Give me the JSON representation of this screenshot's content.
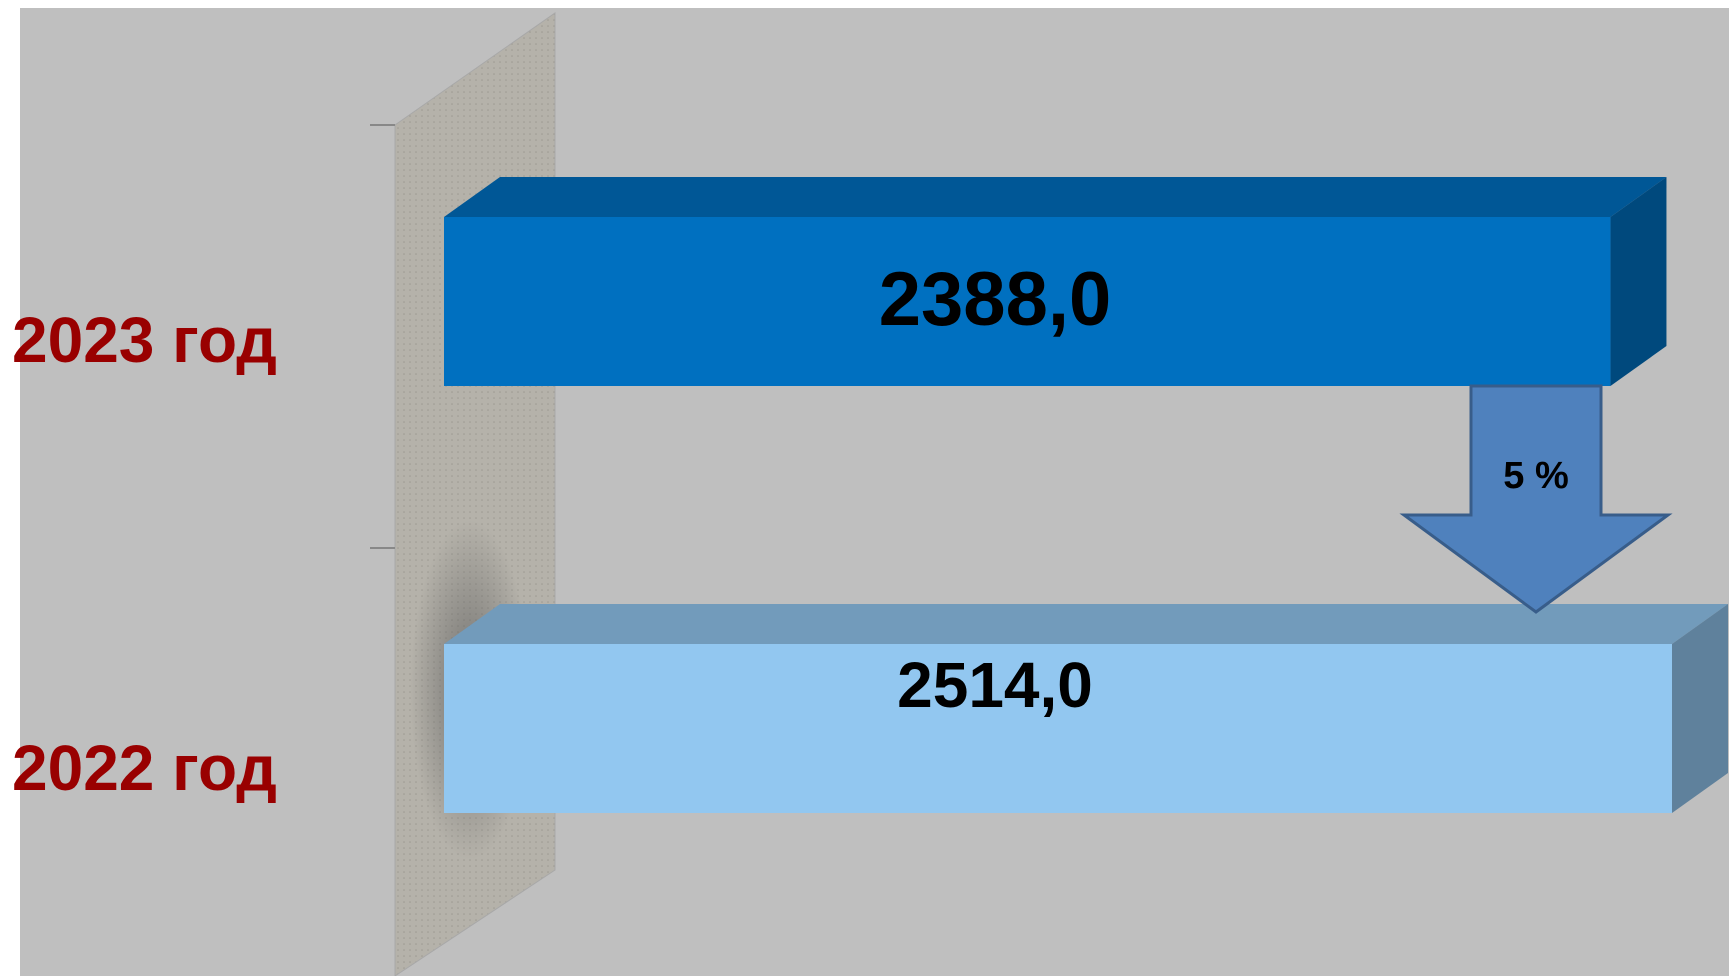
{
  "chart_data": {
    "type": "bar3d-horizontal",
    "categories": [
      "2023 год",
      "2022 год"
    ],
    "values": [
      2388.0,
      2514.0
    ],
    "value_labels": [
      "2388,0",
      "2514,0"
    ],
    "colors": [
      "#0070c0",
      "#92c7f0"
    ],
    "label_color": "#990000",
    "annotation": "5 %"
  }
}
